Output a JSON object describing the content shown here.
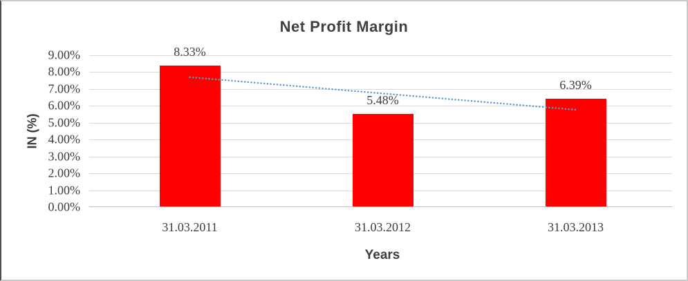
{
  "chart_data": {
    "type": "bar",
    "title": "Net Profit Margin",
    "xlabel": "Years",
    "ylabel": "IN (%)",
    "categories": [
      "31.03.2011",
      "31.03.2012",
      "31.03.2013"
    ],
    "values": [
      8.33,
      5.48,
      6.39
    ],
    "data_labels": [
      "8.33%",
      "5.48%",
      "6.39%"
    ],
    "ylim": [
      0,
      9
    ],
    "ytick_step": 1,
    "ytick_labels": [
      "0.00%",
      "1.00%",
      "2.00%",
      "3.00%",
      "4.00%",
      "5.00%",
      "6.00%",
      "7.00%",
      "8.00%",
      "9.00%"
    ],
    "grid": true,
    "legend": false,
    "bar_color": "#ff0000",
    "trendline": {
      "type": "linear",
      "style": "round-dot",
      "color": "#5b9bd5",
      "start_value": 7.7,
      "end_value": 5.77
    },
    "colors": {
      "title": "#404040",
      "tick_label": "#3d3d3d",
      "gridline": "#d9d9d9",
      "axis_line": "#c0c0c0",
      "frame_border": "#c9c9c9"
    }
  }
}
